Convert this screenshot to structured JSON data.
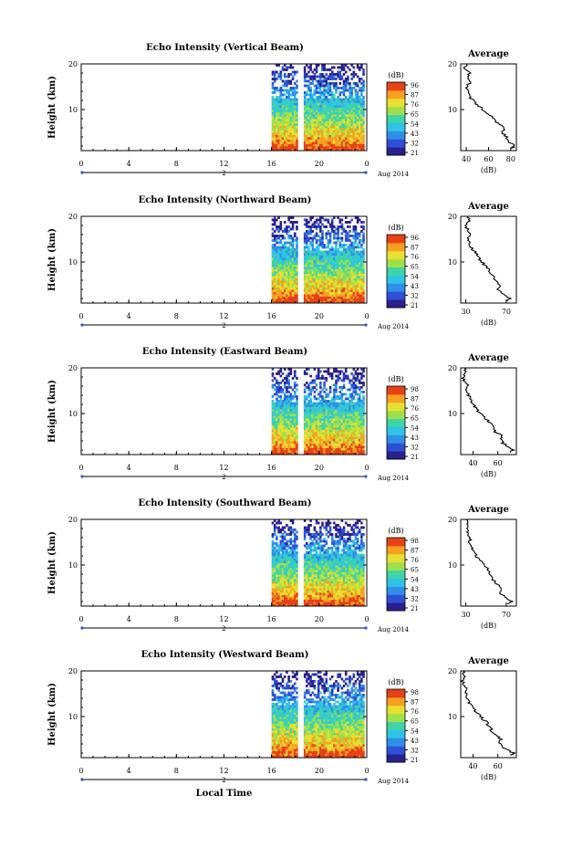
{
  "chart_data": [
    {
      "type": "heatmap",
      "title": "Echo Intensity (Vertical Beam)",
      "ylabel": "Height (km)",
      "xlabel": "",
      "x_ticks": [
        "0",
        "4",
        "8",
        "12",
        "16",
        "20",
        "0"
      ],
      "y_ticks": [
        "20",
        "10"
      ],
      "xlim": [
        0,
        24
      ],
      "ylim": [
        1,
        20
      ],
      "date_label": "2",
      "month_label": "Aug 2014",
      "data_spans_hours": [
        [
          16,
          18.2
        ],
        [
          18.7,
          23.8
        ]
      ],
      "gap_hours": [
        18.2,
        18.7
      ],
      "colorbar": {
        "label": "(dB)",
        "ticks": [
          "96",
          "87",
          "76",
          "65",
          "54",
          "43",
          "32",
          "21"
        ]
      },
      "profile": {
        "title": "Average",
        "xlabel": "(dB)",
        "x_ticks": [
          "40",
          "60",
          "80"
        ],
        "xlim": [
          35,
          85
        ],
        "y_ticks": [
          "20",
          "10"
        ],
        "height_km": [
          1.5,
          2,
          3,
          4,
          5,
          6,
          7,
          8,
          9,
          10,
          11,
          12,
          13,
          14,
          15,
          16,
          17,
          18,
          19,
          20
        ],
        "avg_db": [
          80,
          84,
          78,
          76,
          72,
          74,
          68,
          66,
          60,
          55,
          50,
          46,
          42,
          42,
          40,
          44,
          41,
          43,
          38,
          40
        ]
      }
    },
    {
      "type": "heatmap",
      "title": "Echo Intensity (Northward Beam)",
      "ylabel": "Height (km)",
      "xlabel": "",
      "x_ticks": [
        "0",
        "4",
        "8",
        "12",
        "16",
        "20",
        "0"
      ],
      "y_ticks": [
        "20",
        "10"
      ],
      "xlim": [
        0,
        24
      ],
      "ylim": [
        1,
        20
      ],
      "date_label": "2",
      "month_label": "Aug 2014",
      "data_spans_hours": [
        [
          16,
          18.2
        ],
        [
          18.7,
          23.8
        ]
      ],
      "gap_hours": [
        18.2,
        18.7
      ],
      "colorbar": {
        "label": "(dB)",
        "ticks": [
          "96",
          "87",
          "76",
          "65",
          "54",
          "43",
          "32",
          "21"
        ]
      },
      "profile": {
        "title": "Average",
        "xlabel": "(dB)",
        "x_ticks": [
          "30",
          "70"
        ],
        "xlim": [
          25,
          80
        ],
        "y_ticks": [
          "20",
          "10"
        ],
        "height_km": [
          1.5,
          2,
          3,
          4,
          5,
          6,
          7,
          8,
          9,
          10,
          11,
          12,
          13,
          14,
          15,
          16,
          17,
          18,
          19,
          20
        ],
        "avg_db": [
          70,
          74,
          66,
          62,
          64,
          60,
          56,
          54,
          50,
          46,
          42,
          40,
          36,
          34,
          32,
          34,
          32,
          30,
          33,
          32
        ]
      }
    },
    {
      "type": "heatmap",
      "title": "Echo Intensity (Eastward Beam)",
      "ylabel": "Height (km)",
      "xlabel": "",
      "x_ticks": [
        "0",
        "4",
        "8",
        "12",
        "16",
        "20",
        "0"
      ],
      "y_ticks": [
        "20",
        "10"
      ],
      "xlim": [
        0,
        24
      ],
      "ylim": [
        1,
        20
      ],
      "date_label": "2",
      "month_label": "Aug 2014",
      "data_spans_hours": [
        [
          16,
          18.2
        ],
        [
          18.7,
          23.8
        ]
      ],
      "gap_hours": [
        18.2,
        18.7
      ],
      "colorbar": {
        "label": "(dB)",
        "ticks": [
          "98",
          "87",
          "76",
          "65",
          "54",
          "43",
          "32",
          "21"
        ]
      },
      "profile": {
        "title": "Average",
        "xlabel": "(dB)",
        "x_ticks": [
          "40",
          "60"
        ],
        "xlim": [
          30,
          75
        ],
        "y_ticks": [
          "20",
          "10"
        ],
        "height_km": [
          1.5,
          2,
          3,
          4,
          5,
          6,
          7,
          8,
          9,
          10,
          11,
          12,
          13,
          14,
          15,
          16,
          17,
          18,
          19,
          20
        ],
        "avg_db": [
          70,
          72,
          66,
          63,
          64,
          58,
          56,
          54,
          50,
          46,
          42,
          40,
          38,
          36,
          34,
          36,
          33,
          32,
          34,
          33
        ]
      }
    },
    {
      "type": "heatmap",
      "title": "Echo Intensity (Southward Beam)",
      "ylabel": "Height (km)",
      "xlabel": "",
      "x_ticks": [
        "0",
        "4",
        "8",
        "12",
        "16",
        "20",
        "0"
      ],
      "y_ticks": [
        "20",
        "10"
      ],
      "xlim": [
        0,
        24
      ],
      "ylim": [
        1,
        20
      ],
      "date_label": "2",
      "month_label": "Aug 2014",
      "data_spans_hours": [
        [
          16,
          18.2
        ],
        [
          18.7,
          23.8
        ]
      ],
      "gap_hours": [
        18.2,
        18.7
      ],
      "colorbar": {
        "label": "(dB)",
        "ticks": [
          "98",
          "87",
          "76",
          "65",
          "54",
          "43",
          "32",
          "21"
        ]
      },
      "profile": {
        "title": "Average",
        "xlabel": "(dB)",
        "x_ticks": [
          "30",
          "70"
        ],
        "xlim": [
          25,
          80
        ],
        "y_ticks": [
          "20",
          "10"
        ],
        "height_km": [
          1.5,
          2,
          3,
          4,
          5,
          6,
          7,
          8,
          9,
          10,
          11,
          12,
          13,
          14,
          15,
          16,
          17,
          18,
          19,
          20
        ],
        "avg_db": [
          72,
          76,
          68,
          64,
          66,
          60,
          56,
          54,
          52,
          48,
          44,
          40,
          38,
          36,
          34,
          34,
          32,
          31,
          32,
          30
        ]
      }
    },
    {
      "type": "heatmap",
      "title": "Echo Intensity (Westward Beam)",
      "ylabel": "Height (km)",
      "xlabel": "Local Time",
      "x_ticks": [
        "0",
        "4",
        "8",
        "12",
        "16",
        "20",
        "0"
      ],
      "y_ticks": [
        "20",
        "10"
      ],
      "xlim": [
        0,
        24
      ],
      "ylim": [
        1,
        20
      ],
      "date_label": "2",
      "month_label": "Aug 2014",
      "data_spans_hours": [
        [
          16,
          18.2
        ],
        [
          18.7,
          23.8
        ]
      ],
      "gap_hours": [
        18.2,
        18.7
      ],
      "colorbar": {
        "label": "(dB)",
        "ticks": [
          "98",
          "87",
          "76",
          "65",
          "54",
          "43",
          "32",
          "21"
        ]
      },
      "profile": {
        "title": "Average",
        "xlabel": "(dB)",
        "x_ticks": [
          "40",
          "60"
        ],
        "xlim": [
          30,
          75
        ],
        "y_ticks": [
          "20",
          "10"
        ],
        "height_km": [
          1.5,
          2,
          3,
          4,
          5,
          6,
          7,
          8,
          9,
          10,
          11,
          12,
          13,
          14,
          15,
          16,
          17,
          18,
          19,
          20
        ],
        "avg_db": [
          70,
          73,
          65,
          62,
          63,
          58,
          55,
          53,
          50,
          46,
          42,
          40,
          37,
          35,
          34,
          35,
          33,
          31,
          33,
          32
        ]
      }
    }
  ],
  "colormap": [
    "#2a1f8c",
    "#2e4fd6",
    "#2f8fe8",
    "#2fc4e6",
    "#3fd4a8",
    "#9fe04a",
    "#e8e030",
    "#f5a020",
    "#e84018"
  ]
}
